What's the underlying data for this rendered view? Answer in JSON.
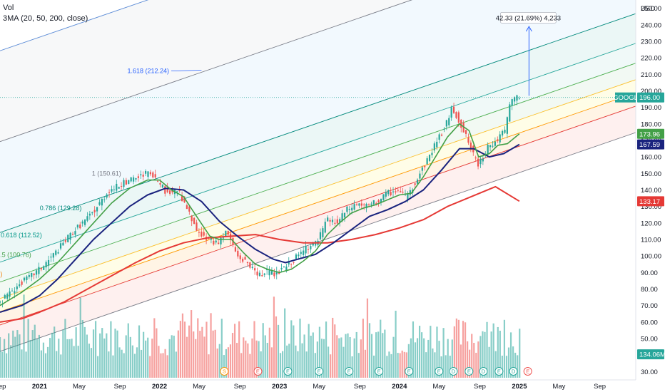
{
  "legend": {
    "line1": "Vol",
    "line2": "3MA (20, 50, 200, close)"
  },
  "chart_data": {
    "type": "candlestick",
    "symbol": "GOOGL",
    "currency": "USD",
    "ylim": [
      25,
      255
    ],
    "y_ticks": [
      250,
      240,
      230,
      220,
      210,
      200,
      190,
      180,
      170,
      160,
      150,
      140,
      130,
      120,
      110,
      100,
      90,
      80,
      70,
      60,
      50,
      40,
      30
    ],
    "x_ticks": [
      {
        "label": "Sep",
        "x": 2020.67
      },
      {
        "label": "2021",
        "x": 2021.0
      },
      {
        "label": "May",
        "x": 2021.33
      },
      {
        "label": "Sep",
        "x": 2021.67
      },
      {
        "label": "2022",
        "x": 2022.0
      },
      {
        "label": "May",
        "x": 2022.33
      },
      {
        "label": "Sep",
        "x": 2022.67
      },
      {
        "label": "2023",
        "x": 2023.0
      },
      {
        "label": "May",
        "x": 2023.33
      },
      {
        "label": "Sep",
        "x": 2023.67
      },
      {
        "label": "2024",
        "x": 2024.0
      },
      {
        "label": "May",
        "x": 2024.33
      },
      {
        "label": "Sep",
        "x": 2024.67
      },
      {
        "label": "2025",
        "x": 2025.0
      },
      {
        "label": "May",
        "x": 2025.33
      },
      {
        "label": "Sep",
        "x": 2025.67
      }
    ],
    "price_path": [
      [
        2020.7,
        72
      ],
      [
        2020.8,
        80
      ],
      [
        2020.95,
        88
      ],
      [
        2021.05,
        94
      ],
      [
        2021.15,
        102
      ],
      [
        2021.3,
        115
      ],
      [
        2021.45,
        125
      ],
      [
        2021.6,
        140
      ],
      [
        2021.75,
        145
      ],
      [
        2021.85,
        148
      ],
      [
        2021.92,
        150
      ],
      [
        2022.0,
        146
      ],
      [
        2022.08,
        138
      ],
      [
        2022.17,
        140
      ],
      [
        2022.25,
        128
      ],
      [
        2022.33,
        115
      ],
      [
        2022.42,
        110
      ],
      [
        2022.5,
        108
      ],
      [
        2022.58,
        115
      ],
      [
        2022.67,
        100
      ],
      [
        2022.75,
        96
      ],
      [
        2022.83,
        88
      ],
      [
        2022.92,
        90
      ],
      [
        2023.0,
        89
      ],
      [
        2023.08,
        94
      ],
      [
        2023.17,
        100
      ],
      [
        2023.25,
        105
      ],
      [
        2023.33,
        108
      ],
      [
        2023.42,
        122
      ],
      [
        2023.5,
        120
      ],
      [
        2023.58,
        128
      ],
      [
        2023.67,
        132
      ],
      [
        2023.75,
        130
      ],
      [
        2023.83,
        133
      ],
      [
        2023.92,
        138
      ],
      [
        2024.0,
        140
      ],
      [
        2024.08,
        135
      ],
      [
        2024.15,
        145
      ],
      [
        2024.25,
        158
      ],
      [
        2024.33,
        170
      ],
      [
        2024.4,
        178
      ],
      [
        2024.46,
        190
      ],
      [
        2024.53,
        180
      ],
      [
        2024.6,
        168
      ],
      [
        2024.67,
        155
      ],
      [
        2024.75,
        165
      ],
      [
        2024.83,
        170
      ],
      [
        2024.9,
        176
      ],
      [
        2024.95,
        195
      ],
      [
        2025.0,
        196
      ]
    ],
    "ma20": [
      [
        2020.67,
        70
      ],
      [
        2020.85,
        78
      ],
      [
        2021.0,
        86
      ],
      [
        2021.15,
        96
      ],
      [
        2021.3,
        108
      ],
      [
        2021.45,
        120
      ],
      [
        2021.6,
        132
      ],
      [
        2021.75,
        141
      ],
      [
        2021.9,
        146
      ],
      [
        2022.0,
        146
      ],
      [
        2022.1,
        140
      ],
      [
        2022.2,
        136
      ],
      [
        2022.3,
        125
      ],
      [
        2022.42,
        112
      ],
      [
        2022.5,
        110
      ],
      [
        2022.6,
        110
      ],
      [
        2022.7,
        102
      ],
      [
        2022.8,
        95
      ],
      [
        2022.9,
        92
      ],
      [
        2023.0,
        90
      ],
      [
        2023.1,
        92
      ],
      [
        2023.2,
        97
      ],
      [
        2023.3,
        103
      ],
      [
        2023.4,
        113
      ],
      [
        2023.5,
        120
      ],
      [
        2023.6,
        126
      ],
      [
        2023.7,
        129
      ],
      [
        2023.8,
        131
      ],
      [
        2023.9,
        134
      ],
      [
        2024.0,
        137
      ],
      [
        2024.1,
        138
      ],
      [
        2024.2,
        148
      ],
      [
        2024.3,
        160
      ],
      [
        2024.4,
        172
      ],
      [
        2024.5,
        180
      ],
      [
        2024.58,
        176
      ],
      [
        2024.66,
        160
      ],
      [
        2024.75,
        162
      ],
      [
        2024.82,
        167
      ],
      [
        2024.9,
        168
      ],
      [
        2025.0,
        173.96
      ]
    ],
    "ma50": [
      [
        2020.67,
        66
      ],
      [
        2020.85,
        70
      ],
      [
        2021.0,
        76
      ],
      [
        2021.15,
        86
      ],
      [
        2021.3,
        98
      ],
      [
        2021.45,
        110
      ],
      [
        2021.6,
        120
      ],
      [
        2021.75,
        130
      ],
      [
        2021.9,
        137
      ],
      [
        2022.05,
        141
      ],
      [
        2022.2,
        140
      ],
      [
        2022.35,
        133
      ],
      [
        2022.5,
        121
      ],
      [
        2022.65,
        112
      ],
      [
        2022.8,
        104
      ],
      [
        2022.95,
        98
      ],
      [
        2023.05,
        96
      ],
      [
        2023.15,
        98
      ],
      [
        2023.3,
        101
      ],
      [
        2023.45,
        108
      ],
      [
        2023.6,
        116
      ],
      [
        2023.75,
        124
      ],
      [
        2023.9,
        128
      ],
      [
        2024.05,
        133
      ],
      [
        2024.2,
        140
      ],
      [
        2024.35,
        152
      ],
      [
        2024.5,
        165
      ],
      [
        2024.62,
        165
      ],
      [
        2024.75,
        160
      ],
      [
        2024.87,
        162
      ],
      [
        2025.0,
        167.59
      ]
    ],
    "ma200": [
      [
        2020.67,
        60
      ],
      [
        2020.85,
        62
      ],
      [
        2021.0,
        66
      ],
      [
        2021.2,
        72
      ],
      [
        2021.4,
        80
      ],
      [
        2021.6,
        88
      ],
      [
        2021.8,
        96
      ],
      [
        2022.0,
        103
      ],
      [
        2022.2,
        108
      ],
      [
        2022.4,
        111
      ],
      [
        2022.6,
        112
      ],
      [
        2022.8,
        113
      ],
      [
        2023.0,
        110
      ],
      [
        2023.2,
        108
      ],
      [
        2023.4,
        108
      ],
      [
        2023.6,
        110
      ],
      [
        2023.8,
        113
      ],
      [
        2024.0,
        117
      ],
      [
        2024.2,
        122
      ],
      [
        2024.4,
        130
      ],
      [
        2024.6,
        136
      ],
      [
        2024.8,
        142
      ],
      [
        2025.0,
        133.17
      ]
    ],
    "fib_levels": [
      {
        "level": "1.618",
        "value": 212.24,
        "label": "1.618 (212.24)"
      },
      {
        "level": "1",
        "value": 150.61,
        "label": "1 (150.61)"
      },
      {
        "level": "0.786",
        "value": 129.28,
        "label": "0.786 (129.28)"
      },
      {
        "level": "0.618",
        "value": 112.52,
        "label": "0.618 (112.52)"
      },
      {
        "level": "0.5",
        "value": 100.76,
        "label": "0.5 (100.76)"
      },
      {
        "level": "0.382",
        "value": 89.0,
        "label": "99)"
      }
    ],
    "measure_label": "42.33 (21.69%) 4,233",
    "badges": [
      {
        "name": "GOOGL",
        "label": "GOOGL",
        "value": "196.00",
        "color": "#26a69a"
      },
      {
        "name": "ma20",
        "value": "173.96",
        "color": "#43a047"
      },
      {
        "name": "ma50",
        "value": "167.59",
        "color": "#1a237e"
      },
      {
        "name": "ma200",
        "value": "133.17",
        "color": "#e53935"
      },
      {
        "name": "volume",
        "value": "134.06M",
        "color": "#26a69a"
      }
    ],
    "volume": {
      "last": "134.06M"
    },
    "events": [
      {
        "label": "S",
        "x": 2022.54,
        "color": "#ff9800"
      },
      {
        "label": "E",
        "x": 2022.82,
        "color": "#ef5350"
      },
      {
        "label": "E",
        "x": 2023.07,
        "color": "#26a69a"
      },
      {
        "label": "E",
        "x": 2023.33,
        "color": "#26a69a"
      },
      {
        "label": "E",
        "x": 2023.58,
        "color": "#26a69a"
      },
      {
        "label": "E",
        "x": 2023.83,
        "color": "#26a69a"
      },
      {
        "label": "E",
        "x": 2024.08,
        "color": "#26a69a"
      },
      {
        "label": "E",
        "x": 2024.33,
        "color": "#26a69a"
      },
      {
        "label": "D",
        "x": 2024.45,
        "color": "#26a69a"
      },
      {
        "label": "E",
        "x": 2024.58,
        "color": "#26a69a"
      },
      {
        "label": "D",
        "x": 2024.7,
        "color": "#26a69a"
      },
      {
        "label": "E",
        "x": 2024.83,
        "color": "#26a69a"
      },
      {
        "label": "D",
        "x": 2024.95,
        "color": "#26a69a"
      },
      {
        "label": "E",
        "x": 2025.07,
        "color": "#ef5350"
      }
    ],
    "colors": {
      "up": "#26a69a",
      "down": "#ef5350",
      "ma20": "#43a047",
      "ma50": "#1a237e",
      "ma200": "#e53935"
    }
  }
}
